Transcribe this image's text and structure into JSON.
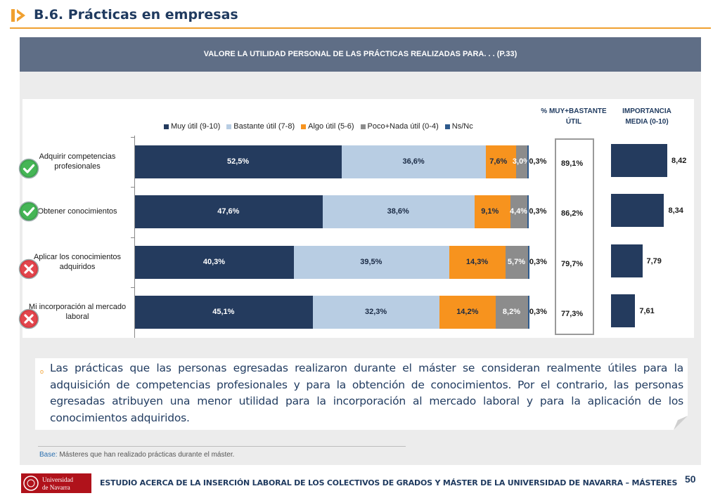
{
  "header": {
    "title": "B.6. Prácticas en empresas",
    "accent_color": "#f0a030"
  },
  "banner": {
    "text": "VALORE LA UTILIDAD PERSONAL DE LAS PRÁCTICAS REALIZADAS PARA. . . (P.33)"
  },
  "chart_data": {
    "type": "bar",
    "orientation": "horizontal",
    "stacked": true,
    "legend_position": "top",
    "categories": [
      "Adquirir competencias profesionales",
      "Obtener conocimientos",
      "Aplicar los conocimientos adquiridos",
      "Mi incorporación al mercado laboral"
    ],
    "category_status_icons": [
      "check-icon",
      "check-icon",
      "cross-icon",
      "cross-icon"
    ],
    "series": [
      {
        "name": "Muy útil (9-10)",
        "color": "#243b5e",
        "values": [
          52.5,
          47.6,
          40.3,
          45.1
        ],
        "labels": [
          "52,5%",
          "47,6%",
          "40,3%",
          "45,1%"
        ]
      },
      {
        "name": "Bastante útil (7-8)",
        "color": "#b8cde3",
        "values": [
          36.6,
          38.6,
          39.5,
          32.3
        ],
        "labels": [
          "36,6%",
          "38,6%",
          "39,5%",
          "32,3%"
        ]
      },
      {
        "name": "Algo útil (5-6)",
        "color": "#f7931e",
        "values": [
          7.6,
          9.1,
          14.3,
          14.2
        ],
        "labels": [
          "7,6%",
          "9,1%",
          "14,3%",
          "14,2%"
        ]
      },
      {
        "name": "Poco+Nada útil (0-4)",
        "color": "#8c8c8c",
        "values": [
          3.0,
          4.4,
          5.7,
          8.2
        ],
        "labels": [
          "3,0%",
          "4,4%",
          "5,7%",
          "8,2%"
        ]
      },
      {
        "name": "Ns/Nc",
        "color": "#2e5a8c",
        "values": [
          0.3,
          0.3,
          0.3,
          0.3
        ],
        "labels": [
          "0,3%",
          "0,3%",
          "0,3%",
          "0,3%"
        ]
      }
    ],
    "xlim": [
      0,
      100
    ],
    "side_columns": {
      "pct_header": "% MUY+BASTANTE ÚTIL",
      "pct_header_lines": [
        "% MUY+BASTANTE",
        "ÚTIL"
      ],
      "pct_values": [
        89.1,
        86.2,
        79.7,
        77.3
      ],
      "pct_labels": [
        "89,1%",
        "86,2%",
        "79,7%",
        "77,3%"
      ],
      "importance_header_lines": [
        "IMPORTANCIA",
        "MEDIA (0-10)"
      ],
      "importance_values": [
        8.42,
        8.34,
        7.79,
        7.61
      ],
      "importance_labels": [
        "8,42",
        "8,34",
        "7,79",
        "7,61"
      ],
      "importance_color": "#243b5e"
    }
  },
  "category_label_lines": [
    [
      "Adquirir competencias",
      "profesionales"
    ],
    [
      "Obtener conocimientos"
    ],
    [
      "Aplicar los conocimientos",
      "adquiridos"
    ],
    [
      "Mi incorporación al mercado",
      "laboral"
    ]
  ],
  "note": {
    "bullet": "o",
    "text": "Las prácticas que las personas egresadas realizaron durante el máster se consideran realmente útiles para la adquisición de competencias profesionales y para la obtención de conocimientos. Por el contrario, las personas egresadas atribuyen una menor utilidad para la incorporación al mercado laboral y para la aplicación de los conocimientos adquiridos."
  },
  "base": {
    "label": "Base:",
    "text": " Másteres que han realizado prácticas durante el máster."
  },
  "footer": {
    "logo_text_line1": "Universidad",
    "logo_text_line2": "de Navarra",
    "logo_color": "#b0121b",
    "text": "ESTUDIO ACERCA DE LA INSERCIÓN LABORAL DE LOS COLECTIVOS DE GRADOS Y MÁSTER DE LA UNIVERSIDAD DE NAVARRA – MÁSTERES",
    "page_number": "50"
  }
}
